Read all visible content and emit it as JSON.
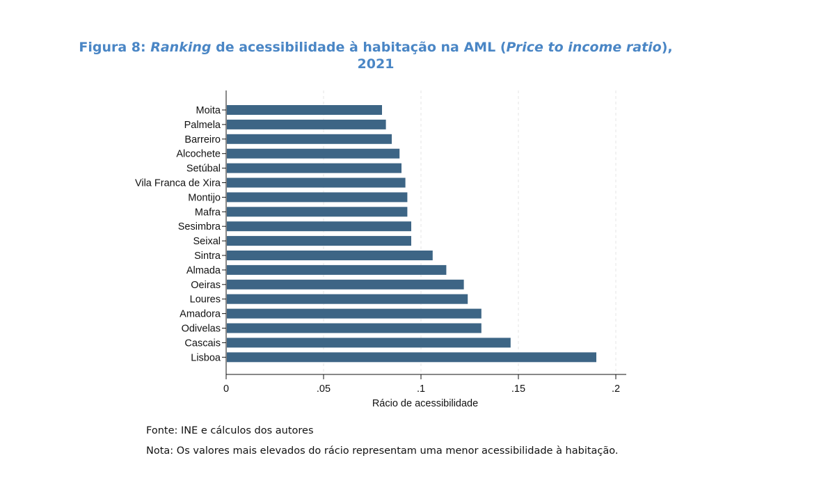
{
  "title": {
    "prefix": "Figura 8: ",
    "italic1": "Ranking",
    "middle": " de acessibilidade à habitação na AML (",
    "italic2": "Price to income ratio",
    "suffix": "),",
    "line2": "2021"
  },
  "chart_data": {
    "type": "bar",
    "orientation": "horizontal",
    "categories": [
      "Moita",
      "Palmela",
      "Barreiro",
      "Alcochete",
      "Setúbal",
      "Vila Franca de Xira",
      "Montijo",
      "Mafra",
      "Sesimbra",
      "Seixal",
      "Sintra",
      "Almada",
      "Oeiras",
      "Loures",
      "Amadora",
      "Odivelas",
      "Cascais",
      "Lisboa"
    ],
    "values": [
      0.08,
      0.082,
      0.085,
      0.089,
      0.09,
      0.092,
      0.093,
      0.093,
      0.095,
      0.095,
      0.106,
      0.113,
      0.122,
      0.124,
      0.131,
      0.131,
      0.146,
      0.19
    ],
    "xlabel": "Rácio de acessibilidade",
    "ylabel": "",
    "xlim": [
      0,
      0.2
    ],
    "xticks": [
      0,
      0.05,
      0.1,
      0.15,
      0.2
    ],
    "xtick_labels": [
      "0",
      ".05",
      ".1",
      ".15",
      ".2"
    ],
    "grid": "vertical dashed",
    "bar_color": "#3d6585"
  },
  "notes": {
    "source": "Fonte: INE e cálculos dos autores",
    "nota": "Nota: Os valores mais elevados do rácio representam uma menor acessibilidade à habitação."
  }
}
